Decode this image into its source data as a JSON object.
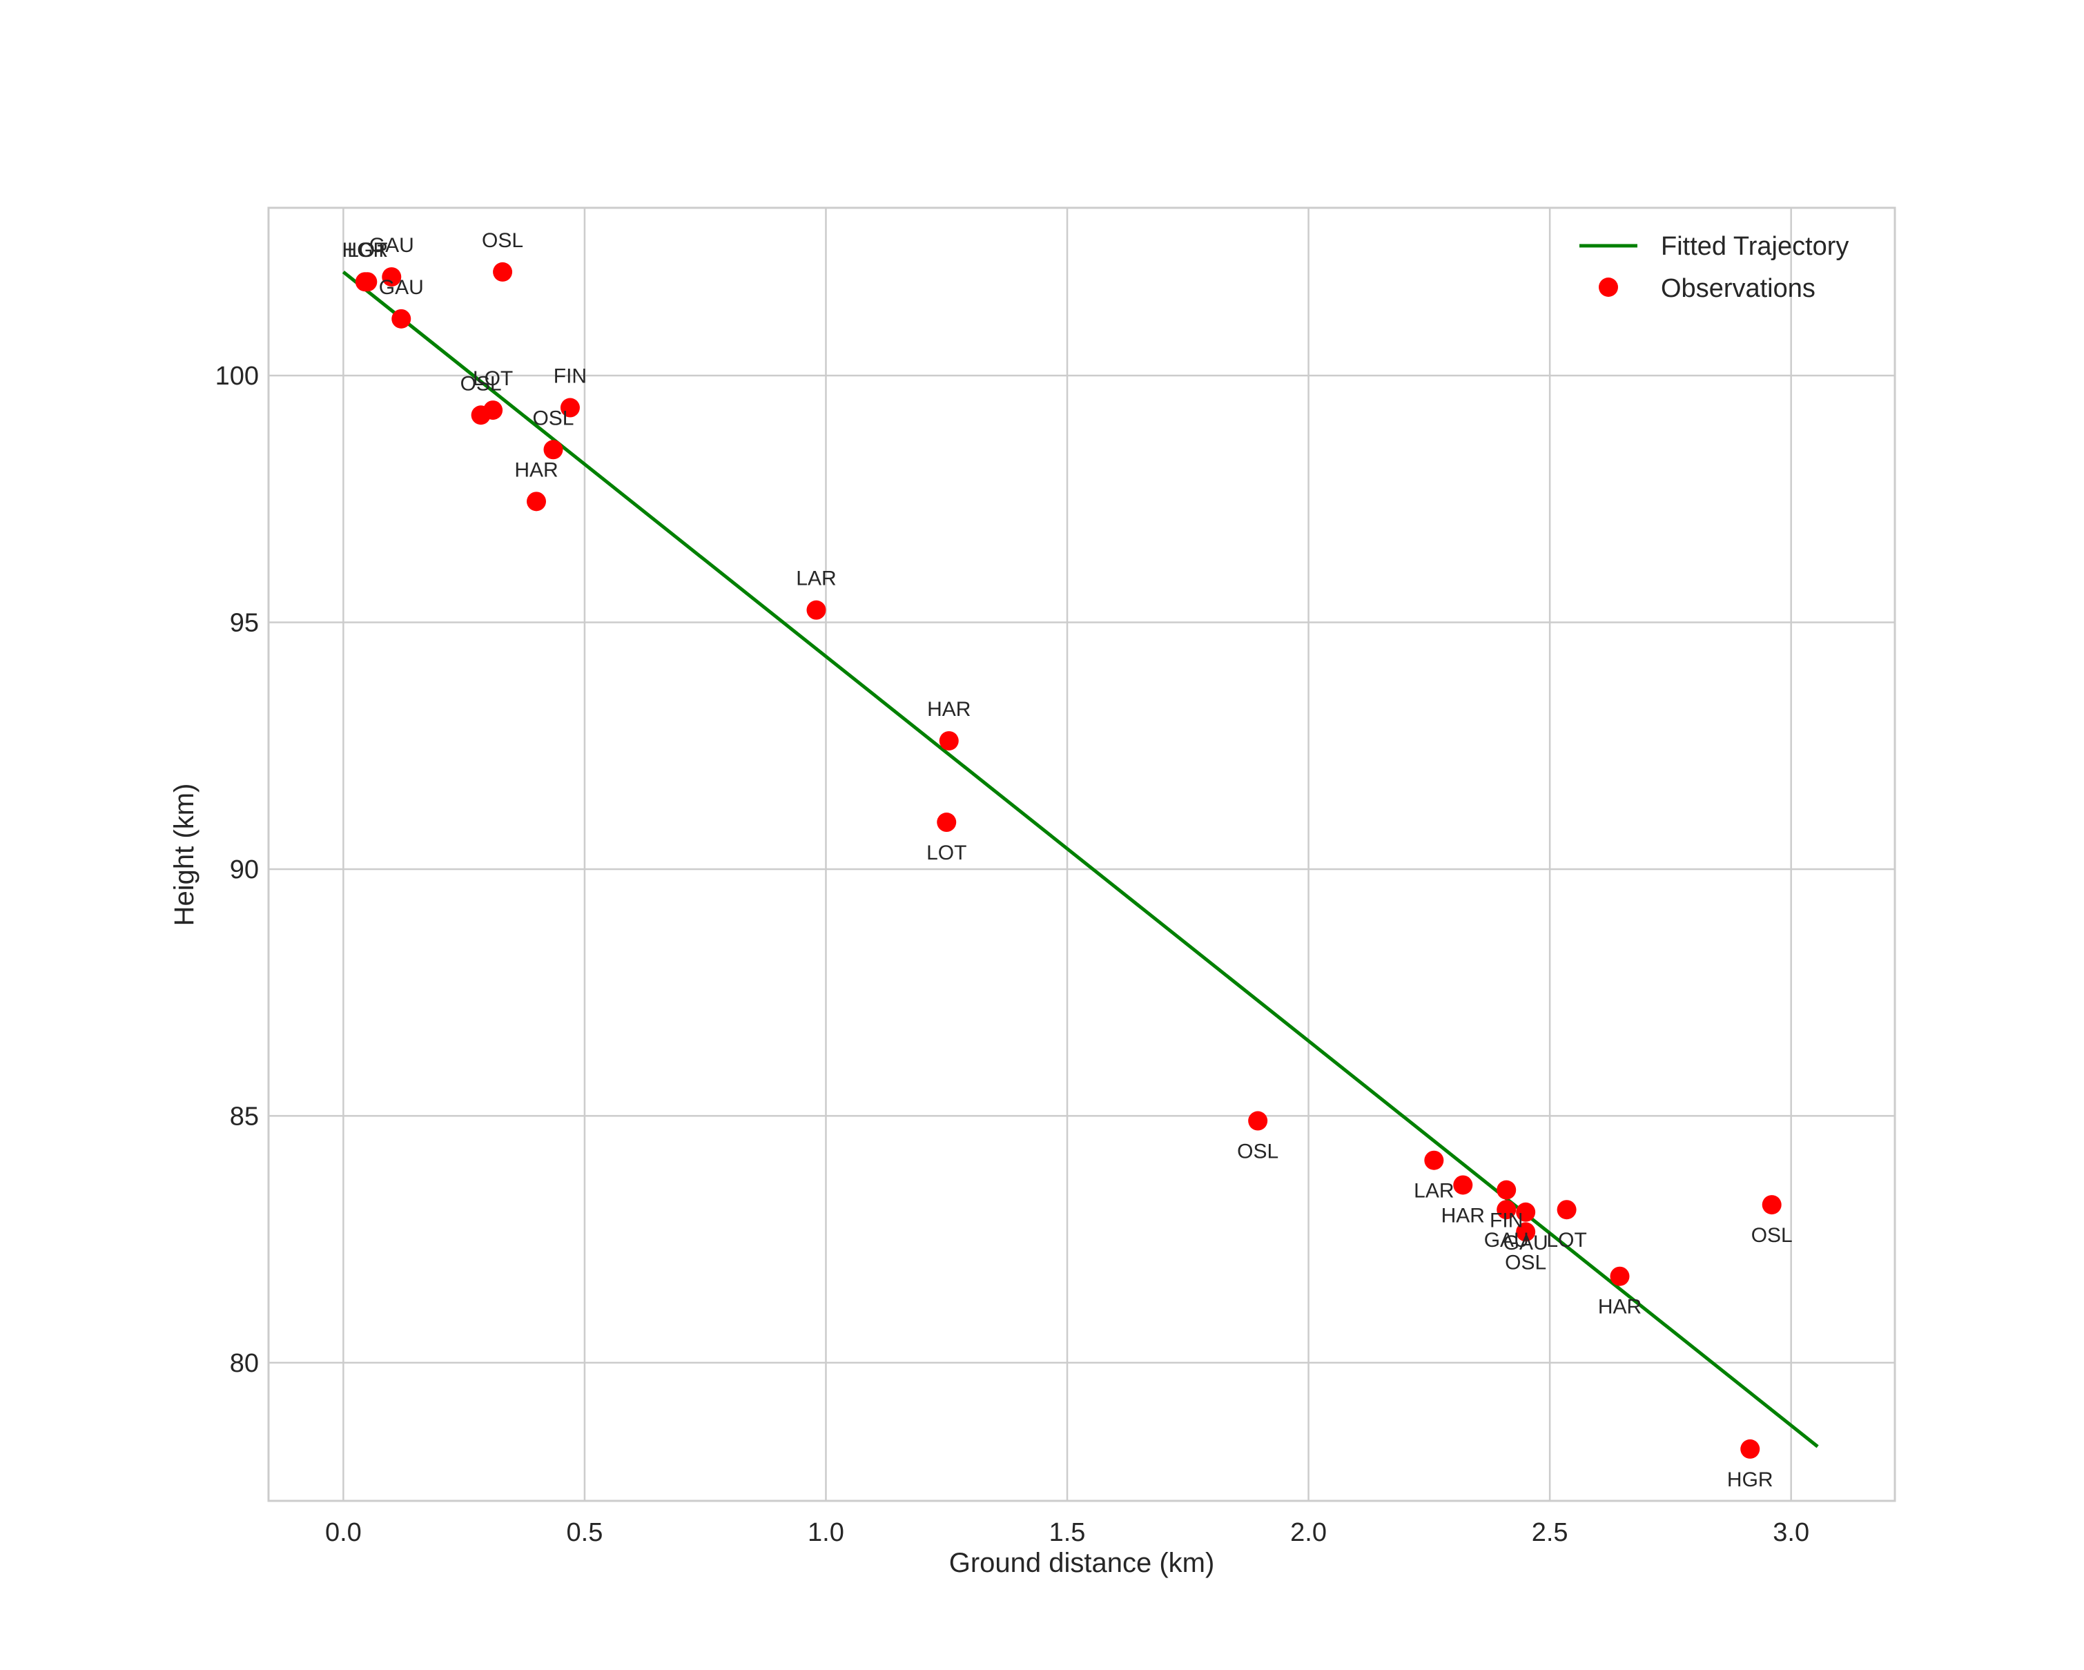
{
  "chart_data": {
    "type": "scatter",
    "title": "",
    "xlabel": "Ground distance (km)",
    "ylabel": "Height (km)",
    "xlim": [
      -0.155,
      3.215
    ],
    "ylim": [
      77.2,
      103.4
    ],
    "xticks": [
      0.0,
      0.5,
      1.0,
      1.5,
      2.0,
      2.5,
      3.0
    ],
    "xtick_labels": [
      "0.0",
      "0.5",
      "1.0",
      "1.5",
      "2.0",
      "2.5",
      "3.0"
    ],
    "yticks": [
      80,
      85,
      90,
      95,
      100
    ],
    "ytick_labels": [
      "80",
      "85",
      "90",
      "95",
      "100"
    ],
    "grid": true,
    "legend_position": "top-right",
    "series": [
      {
        "name": "Fitted Trajectory",
        "kind": "line",
        "color": "#008000",
        "x": [
          0.0,
          3.055
        ],
        "y": [
          102.1,
          78.3
        ]
      },
      {
        "name": "Observations",
        "kind": "scatter",
        "color": "#ff0000",
        "points": [
          {
            "label": "HGR",
            "x": 0.045,
            "y": 101.9,
            "label_pos": "above"
          },
          {
            "label": "LOT",
            "x": 0.05,
            "y": 101.9,
            "label_pos": "above"
          },
          {
            "label": "GAU",
            "x": 0.1,
            "y": 102.0,
            "label_pos": "above"
          },
          {
            "label": "GAU",
            "x": 0.12,
            "y": 101.15,
            "label_pos": "above"
          },
          {
            "label": "OSL",
            "x": 0.33,
            "y": 102.1,
            "label_pos": "above"
          },
          {
            "label": "OSL",
            "x": 0.285,
            "y": 99.2,
            "label_pos": "above"
          },
          {
            "label": "LOT",
            "x": 0.31,
            "y": 99.3,
            "label_pos": "above"
          },
          {
            "label": "FIN",
            "x": 0.47,
            "y": 99.35,
            "label_pos": "above"
          },
          {
            "label": "OSL",
            "x": 0.435,
            "y": 98.5,
            "label_pos": "above"
          },
          {
            "label": "HAR",
            "x": 0.4,
            "y": 97.45,
            "label_pos": "above"
          },
          {
            "label": "LAR",
            "x": 0.98,
            "y": 95.25,
            "label_pos": "above"
          },
          {
            "label": "HAR",
            "x": 1.255,
            "y": 92.6,
            "label_pos": "above"
          },
          {
            "label": "LOT",
            "x": 1.25,
            "y": 90.95,
            "label_pos": "below"
          },
          {
            "label": "OSL",
            "x": 1.895,
            "y": 84.9,
            "label_pos": "below"
          },
          {
            "label": "LAR",
            "x": 2.26,
            "y": 84.1,
            "label_pos": "below"
          },
          {
            "label": "HAR",
            "x": 2.32,
            "y": 83.6,
            "label_pos": "below"
          },
          {
            "label": "FIN",
            "x": 2.41,
            "y": 83.5,
            "label_pos": "below"
          },
          {
            "label": "GAU",
            "x": 2.41,
            "y": 83.1,
            "label_pos": "below"
          },
          {
            "label": "GAU",
            "x": 2.45,
            "y": 83.05,
            "label_pos": "below"
          },
          {
            "label": "OSL",
            "x": 2.45,
            "y": 82.65,
            "label_pos": "below"
          },
          {
            "label": "LOT",
            "x": 2.535,
            "y": 83.1,
            "label_pos": "below"
          },
          {
            "label": "HAR",
            "x": 2.645,
            "y": 81.75,
            "label_pos": "below"
          },
          {
            "label": "OSL",
            "x": 2.96,
            "y": 83.2,
            "label_pos": "below"
          },
          {
            "label": "HGR",
            "x": 2.915,
            "y": 78.25,
            "label_pos": "below"
          }
        ]
      }
    ]
  }
}
